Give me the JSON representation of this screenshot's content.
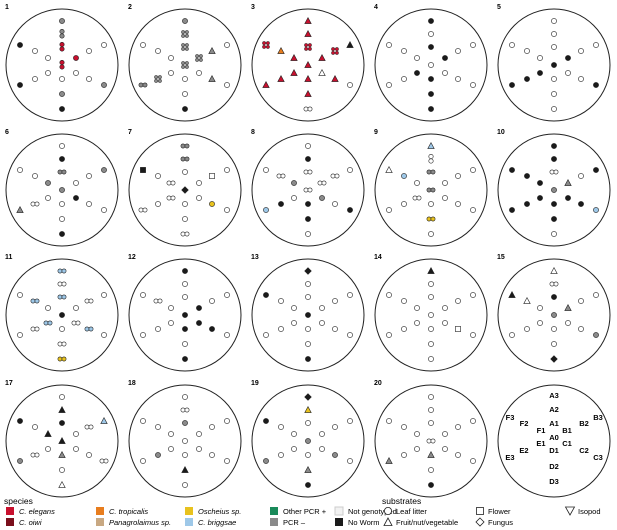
{
  "plots": [
    {
      "number": "1",
      "samples": {
        "A3": "gray",
        "A2": "ell:gray",
        "A1": "ell:red",
        "A0": "ell:red",
        "B1": "red",
        "F1": "white",
        "C1": "white",
        "E1": "white",
        "D1": "white",
        "D2": "gray",
        "D3": "black",
        "F3": "black",
        "B3": "white",
        "F2": "white",
        "B2": "white",
        "E2": "white",
        "C2": "white",
        "E3": "black",
        "C3": "gray"
      }
    },
    {
      "number": "2",
      "samples": {
        "A3": "gray",
        "A2": "sq:gray",
        "A1": "sq:gray",
        "A0": "sq:gray",
        "B1": "sq:gray",
        "F1": "white",
        "C1": "white",
        "E1": "white",
        "D1": "white",
        "D2": "white",
        "D3": "black",
        "F3": "white",
        "B3": "white",
        "F2": "white",
        "B2": "tri:gray",
        "E2": "sq:gray",
        "C2": "tri:gray",
        "E3": "pair:gray",
        "C3": "white"
      }
    },
    {
      "number": "3",
      "samples": {
        "A3": "tri:red",
        "A2": "tri:red",
        "A1": "sq:red",
        "A0": "tri:red",
        "B1": "tri:red",
        "F1": "tri:red",
        "C1": "tri:white",
        "E1": "tri:red",
        "D1": "tri:red",
        "D2": "tri:red",
        "D3": "pair:white",
        "F3": "sq:red",
        "B3": "tri:black",
        "F2": "tri:orange",
        "B2": "sq:red",
        "E2": "tri:red",
        "C2": "tri:red",
        "E3": "tri:red",
        "C3": "white"
      }
    },
    {
      "number": "4",
      "samples": {
        "A3": "black",
        "A2": "white",
        "A1": "black",
        "A0": "white",
        "B1": "black",
        "F1": "white",
        "C1": "white",
        "E1": "black",
        "D1": "black",
        "D2": "black",
        "D3": "black",
        "F3": "white",
        "B3": "white",
        "F2": "white",
        "B2": "white",
        "E2": "white",
        "C2": "white",
        "E3": "white",
        "C3": "white"
      }
    },
    {
      "number": "5",
      "samples": {
        "A3": "white",
        "A2": "white",
        "A1": "white",
        "A0": "black",
        "B1": "black",
        "F1": "white",
        "C1": "white",
        "E1": "black",
        "D1": "white",
        "D2": "white",
        "D3": "white",
        "F3": "white",
        "B3": "white",
        "F2": "white",
        "B2": "white",
        "E2": "black",
        "C2": "white",
        "E3": "black",
        "C3": "black"
      }
    },
    {
      "number": "6",
      "samples": {
        "A3": "white",
        "A2": "black",
        "A1": "pair:gray",
        "A0": "gray",
        "B1": "white",
        "F1": "gray",
        "C1": "black",
        "E1": "white",
        "D1": "white",
        "D2": "white",
        "D3": "black",
        "F3": "white",
        "B3": "gray",
        "F2": "white",
        "B2": "white",
        "E2": "pair:white",
        "C2": "white",
        "E3": "tri:gray",
        "C3": "white"
      }
    },
    {
      "number": "7",
      "samples": {
        "A3": "pair:gray",
        "A2": "pair:gray",
        "A1": "white",
        "A0": "diam:black",
        "B1": "white",
        "F1": "pair:white",
        "C1": "white",
        "E1": "pair:white",
        "D1": "white",
        "D2": "white",
        "D3": "pair:white",
        "F3": "sqr:black",
        "B3": "white",
        "F2": "white",
        "B2": "sqr:white",
        "E2": "white",
        "C2": "yellow",
        "E3": "pair:white",
        "C3": "white"
      }
    },
    {
      "number": "8",
      "samples": {
        "A3": "white",
        "A2": "black",
        "A1": "pair:white",
        "A0": "pair:white",
        "B1": "pair:white",
        "F1": "gray",
        "C1": "gray",
        "E1": "white",
        "D1": "black",
        "D2": "black",
        "D3": "white",
        "F3": "white",
        "B3": "white",
        "F2": "pair:white",
        "B2": "pair:white",
        "E2": "black",
        "C2": "white",
        "E3": "blue",
        "C3": "black"
      }
    },
    {
      "number": "9",
      "samples": {
        "A3": "tri:blue",
        "A2": "ell:white",
        "A1": "pair:gray",
        "A0": "pair:gray",
        "B1": "white",
        "F1": "white",
        "C1": "white",
        "E1": "pair:white",
        "D1": "white",
        "D2": "pair:yellow",
        "D3": "white",
        "F3": "tri:white",
        "B3": "white",
        "F2": "blue",
        "B2": "white",
        "E2": "white",
        "C2": "white",
        "E3": "white",
        "C3": "white"
      }
    },
    {
      "number": "10",
      "samples": {
        "A3": "black",
        "A2": "black",
        "A1": "pair:white",
        "A0": "gray",
        "B1": "tri:gray",
        "F1": "black",
        "C1": "black",
        "E1": "black",
        "D1": "black",
        "D2": "black",
        "D3": "white",
        "F3": "black",
        "B3": "black",
        "F2": "black",
        "B2": "white",
        "E2": "black",
        "C2": "black",
        "E3": "black",
        "C3": "blue"
      }
    },
    {
      "number": "11",
      "samples": {
        "A3": "pair:blue",
        "A2": "pair:white",
        "A1": "pair:blue",
        "A0": "black",
        "B1": "white",
        "F1": "white",
        "C1": "pair:white",
        "E1": "pair:blue",
        "D1": "white",
        "D2": "pair:white",
        "D3": "pair:yellow",
        "F3": "white",
        "B3": "white",
        "F2": "pair:blue",
        "B2": "pair:white",
        "E2": "pair:white",
        "C2": "pair:blue",
        "E3": "white",
        "C3": "white"
      }
    },
    {
      "number": "12",
      "samples": {
        "A3": "black",
        "A2": "white",
        "A1": "white",
        "A0": "black",
        "B1": "black",
        "F1": "white",
        "C1": "black",
        "E1": "white",
        "D1": "black",
        "D2": "white",
        "D3": "black",
        "F3": "white",
        "B3": "white",
        "F2": "pair:white",
        "B2": "white",
        "E2": "white",
        "C2": "black",
        "E3": "white",
        "C3": "white"
      }
    },
    {
      "number": "13",
      "samples": {
        "A3": "diam:black",
        "A2": "white",
        "A1": "white",
        "A0": "black",
        "B1": "white",
        "F1": "white",
        "C1": "white",
        "E1": "white",
        "D1": "white",
        "D2": "white",
        "D3": "black",
        "F3": "black",
        "B3": "white",
        "F2": "white",
        "B2": "white",
        "E2": "white",
        "C2": "white",
        "E3": "white",
        "C3": "white"
      }
    },
    {
      "number": "14",
      "samples": {
        "A3": "tri:black",
        "A2": "white",
        "A1": "white",
        "A0": "white",
        "B1": "white",
        "F1": "white",
        "C1": "white",
        "E1": "white",
        "D1": "white",
        "D2": "white",
        "D3": "white",
        "F3": "white",
        "B3": "white",
        "F2": "white",
        "B2": "white",
        "E2": "white",
        "C2": "sqr:white",
        "E3": "white",
        "C3": "white"
      }
    },
    {
      "number": "15",
      "samples": {
        "A3": "tri:white",
        "A2": "pair:white",
        "A1": "black",
        "A0": "gray",
        "B1": "tri:gray",
        "F1": "white",
        "C1": "white",
        "E1": "white",
        "D1": "white",
        "D2": "white",
        "D3": "diam:black",
        "F3": "tri:black",
        "B3": "white",
        "F2": "tri:white",
        "B2": "white",
        "E2": "white",
        "C2": "white",
        "E3": "white",
        "C3": "gray"
      }
    },
    {
      "number": "17",
      "samples": {
        "A3": "white",
        "A2": "tri:black",
        "A1": "black",
        "A0": "tri:black",
        "B1": "white",
        "F1": "tri:black",
        "C1": "white",
        "E1": "white",
        "D1": "tri:gray",
        "D2": "white",
        "D3": "tri:white",
        "F3": "black",
        "B3": "tri:blue",
        "F2": "white",
        "B2": "pair:white",
        "E2": "pair:white",
        "C2": "white",
        "E3": "gray",
        "C3": "pair:white"
      }
    },
    {
      "number": "18",
      "samples": {
        "A3": "white",
        "A2": "pair:white",
        "A1": "gray",
        "A0": "white",
        "B1": "white",
        "F1": "white",
        "C1": "white",
        "E1": "white",
        "D1": "white",
        "D2": "tri:black",
        "D3": "white",
        "F3": "white",
        "B3": "white",
        "F2": "white",
        "B2": "white",
        "E2": "gray",
        "C2": "white",
        "E3": "white",
        "C3": "white"
      }
    },
    {
      "number": "19",
      "samples": {
        "A3": "diam:black",
        "A2": "tri:yellow",
        "A1": "white",
        "A0": "gray",
        "B1": "white",
        "F1": "white",
        "C1": "white",
        "E1": "white",
        "D1": "white",
        "D2": "tri:gray",
        "D3": "black",
        "F3": "black",
        "B3": "white",
        "F2": "white",
        "B2": "white",
        "E2": "white",
        "C2": "gray",
        "E3": "gray",
        "C3": "white"
      }
    },
    {
      "number": "20",
      "samples": {
        "A3": "white",
        "A2": "white",
        "A1": "white",
        "A0": "pair:white",
        "B1": "white",
        "F1": "white",
        "C1": "white",
        "E1": "white",
        "D1": "tri:gray",
        "D2": "white",
        "D3": "black",
        "F3": "white",
        "B3": "white",
        "F2": "white",
        "B2": "white",
        "E2": "white",
        "C2": "white",
        "E3": "tri:gray",
        "C3": "white"
      }
    }
  ],
  "key_plot": {
    "labels": [
      "A3",
      "A2",
      "A1",
      "A0",
      "B1",
      "B2",
      "B3",
      "C1",
      "C2",
      "C3",
      "D1",
      "D2",
      "D3",
      "E1",
      "E2",
      "E3",
      "F1",
      "F2",
      "F3"
    ]
  },
  "legend": {
    "species_title": "species",
    "species": [
      {
        "label": "C. elegans",
        "color": "#c8102e",
        "italic": true
      },
      {
        "label": "C. oiwi",
        "color": "#7a0f1c",
        "italic": true
      },
      {
        "label": "C. tropicalis",
        "color": "#e87d1e",
        "italic": true
      },
      {
        "label": "Panagrolaimus sp.",
        "color": "#c8a882",
        "italic": true
      },
      {
        "label": "Oscheius sp.",
        "color": "#e8c21e",
        "italic": true
      },
      {
        "label": "C. briggsae",
        "color": "#9ec8e8",
        "italic": true
      },
      {
        "label": "Other PCR +",
        "color": "#1a8a5a",
        "italic": false
      },
      {
        "label": "PCR –",
        "color": "#8a8a8a",
        "italic": false
      },
      {
        "label": "Not genotyped",
        "color": "#f2f2f2",
        "italic": false
      },
      {
        "label": "No Worm",
        "color": "#1a1a1a",
        "italic": false
      }
    ],
    "substrates_title": "substrates",
    "substrates": [
      {
        "label": "Leaf litter",
        "shape": "circle"
      },
      {
        "label": "Fruit/nut/vegetable",
        "shape": "triangle"
      },
      {
        "label": "Flower",
        "shape": "square"
      },
      {
        "label": "Fungus",
        "shape": "diamond"
      },
      {
        "label": "Isopod",
        "shape": "triangle-down"
      }
    ]
  },
  "colors": {
    "red": "#c8102e",
    "orange": "#e87d1e",
    "yellow": "#e8c21e",
    "blue": "#9ec8e8",
    "gray": "#8a8a8a",
    "black": "#1a1a1a",
    "white": "#ffffff"
  }
}
